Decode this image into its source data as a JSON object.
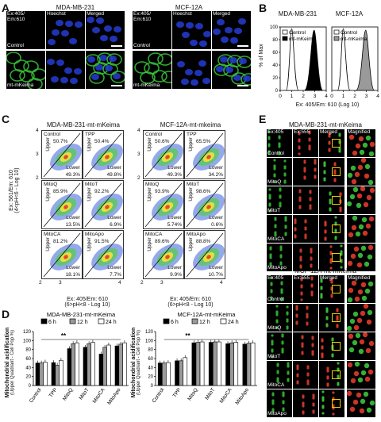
{
  "panels": {
    "A": "A",
    "B": "B",
    "C": "C",
    "D": "D",
    "E": "E"
  },
  "A": {
    "cell1": "MDA-MB-231",
    "cell2": "MCF-12A",
    "col_ex": "Ex:405/\nEm:610",
    "col_hoechst": "Hoechst",
    "col_merged": "Merged",
    "row_control": "Control",
    "row_mt": "mt-mKeima"
  },
  "B": {
    "titles": [
      "MDA-MB-231",
      "MCF-12A"
    ],
    "legend": [
      "Control",
      "mt-mKeima"
    ],
    "ylabel": "% of Max",
    "xlabel": "Ex: 405/Em: 610 (Log 10)",
    "yticks": [
      "0",
      "20",
      "40",
      "60",
      "80",
      "100"
    ],
    "xticks": [
      "0",
      "1",
      "2",
      "3",
      "4"
    ],
    "colors": {
      "mda": "#000000",
      "mcf": "#9a9a9a"
    }
  },
  "C": {
    "title_left": "MDA-MB-231-mt-mKeima",
    "title_right": "MCF-12A-mt-mkeima",
    "ylabel": "Ex: 561/Em: 610",
    "ylabel2": "(4<pH<6 - Log 10)",
    "xlabel": "Ex: 405/Em: 610",
    "xlabel2": "(6>pH<8 - Log 10)",
    "xticks": [
      "2",
      "3",
      "4"
    ],
    "yticks": [
      "2",
      "3",
      "4"
    ],
    "upper": "Upper",
    "lower": "Lower",
    "left": [
      {
        "cond": "Control",
        "up": "50.7%",
        "lo": "49.3%"
      },
      {
        "cond": "TPP",
        "up": "50.4%",
        "lo": "49.8%"
      },
      {
        "cond": "MitoQ",
        "up": "85.9%",
        "lo": "13.5%"
      },
      {
        "cond": "MitoT",
        "up": "92.2%",
        "lo": "6.9%"
      },
      {
        "cond": "MitoCA",
        "up": "81.2%",
        "lo": "18.1%"
      },
      {
        "cond": "MitoApo",
        "up": "91.5%",
        "lo": "7.7%"
      }
    ],
    "right": [
      {
        "cond": "Control",
        "up": "50.6%",
        "lo": "49.3%"
      },
      {
        "cond": "TPP",
        "up": "65.5%",
        "lo": "34.2%"
      },
      {
        "cond": "MitoQ",
        "up": "93.9%",
        "lo": "5.74%"
      },
      {
        "cond": "MitoT",
        "up": "98.6%",
        "lo": "0.6%"
      },
      {
        "cond": "MitoCA",
        "up": "89.6%",
        "lo": "9.9%"
      },
      {
        "cond": "MitoApo",
        "up": "88.8%",
        "lo": "10.7%"
      }
    ]
  },
  "D": {
    "ylabel": "Mitochondrial acidification",
    "ylabel2": "(Upper Quadrant - Cell Pop %)",
    "legend": [
      "6 h",
      "12 h",
      "24 h"
    ],
    "sig": "**"
  },
  "E": {
    "title1": "MDA-MB-231-mt-mKeima",
    "title2": "MCF-12A-mt-mKeima",
    "cols": [
      "Ex:405",
      "Ex:555",
      "Merged",
      "Magnified"
    ],
    "rows": [
      "Control",
      "MitoQ",
      "MitoT",
      "MitoCA",
      "MitoApo"
    ]
  },
  "chart_data": [
    {
      "type": "bar",
      "title": "MDA-MB-231-mt-mKeima",
      "ylabel": "Mitochondrial acidification (Upper Quadrant - Cell Pop %)",
      "categories": [
        "Control",
        "TPP",
        "MitoQ",
        "MitoT",
        "MitoCA",
        "MitoApo"
      ],
      "ylim": [
        0,
        120
      ],
      "yticks": [
        0,
        20,
        40,
        60,
        80,
        100,
        120
      ],
      "series": [
        {
          "name": "6 h",
          "values": [
            50,
            51,
            82,
            85,
            70,
            88
          ],
          "color": "#000000"
        },
        {
          "name": "12 h",
          "values": [
            50,
            45,
            93,
            93,
            85,
            92
          ],
          "color": "#9a9a9a"
        },
        {
          "name": "24 h",
          "values": [
            52,
            56,
            95,
            96,
            90,
            95
          ],
          "color": "#ffffff"
        }
      ]
    },
    {
      "type": "bar",
      "title": "MCF-12A-mt-mKeima",
      "ylabel": "Mitochondrial acidification (Upper Quadrant - Cell Pop %)",
      "categories": [
        "Control",
        "TPP",
        "MitoQ",
        "MitoT",
        "MitoCA",
        "MitoApo"
      ],
      "ylim": [
        0,
        120
      ],
      "yticks": [
        0,
        20,
        40,
        60,
        80,
        100,
        120
      ],
      "series": [
        {
          "name": "6 h",
          "values": [
            50,
            55,
            95,
            96,
            93,
            92
          ],
          "color": "#000000"
        },
        {
          "name": "12 h",
          "values": [
            50,
            55,
            96,
            97,
            95,
            94
          ],
          "color": "#9a9a9a"
        },
        {
          "name": "24 h",
          "values": [
            51,
            62,
            97,
            97,
            96,
            95
          ],
          "color": "#ffffff"
        }
      ]
    }
  ]
}
